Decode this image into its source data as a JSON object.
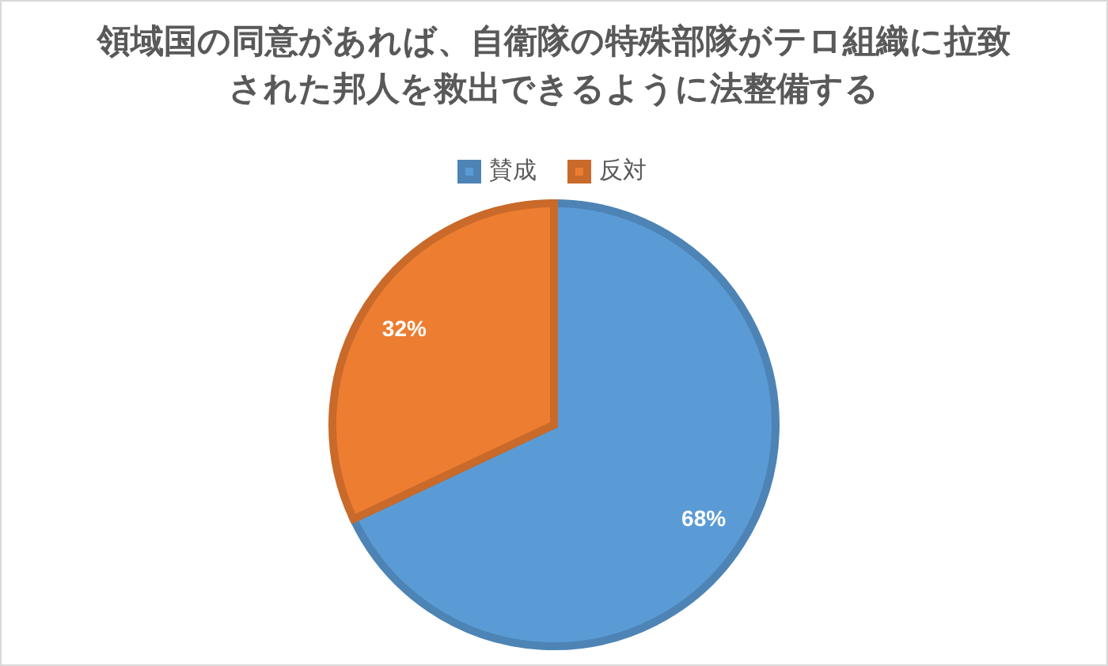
{
  "chart_data": {
    "type": "pie",
    "title": "領域国の同意があれば、自衛隊の特殊部隊がテロ組織に拉致された邦人を救出できるように法整備する",
    "categories": [
      "賛成",
      "反対"
    ],
    "values": [
      68,
      32
    ],
    "colors": [
      "#5b9bd5",
      "#ed7d31"
    ],
    "value_labels": [
      "68%",
      "32%"
    ],
    "legend": "top"
  }
}
